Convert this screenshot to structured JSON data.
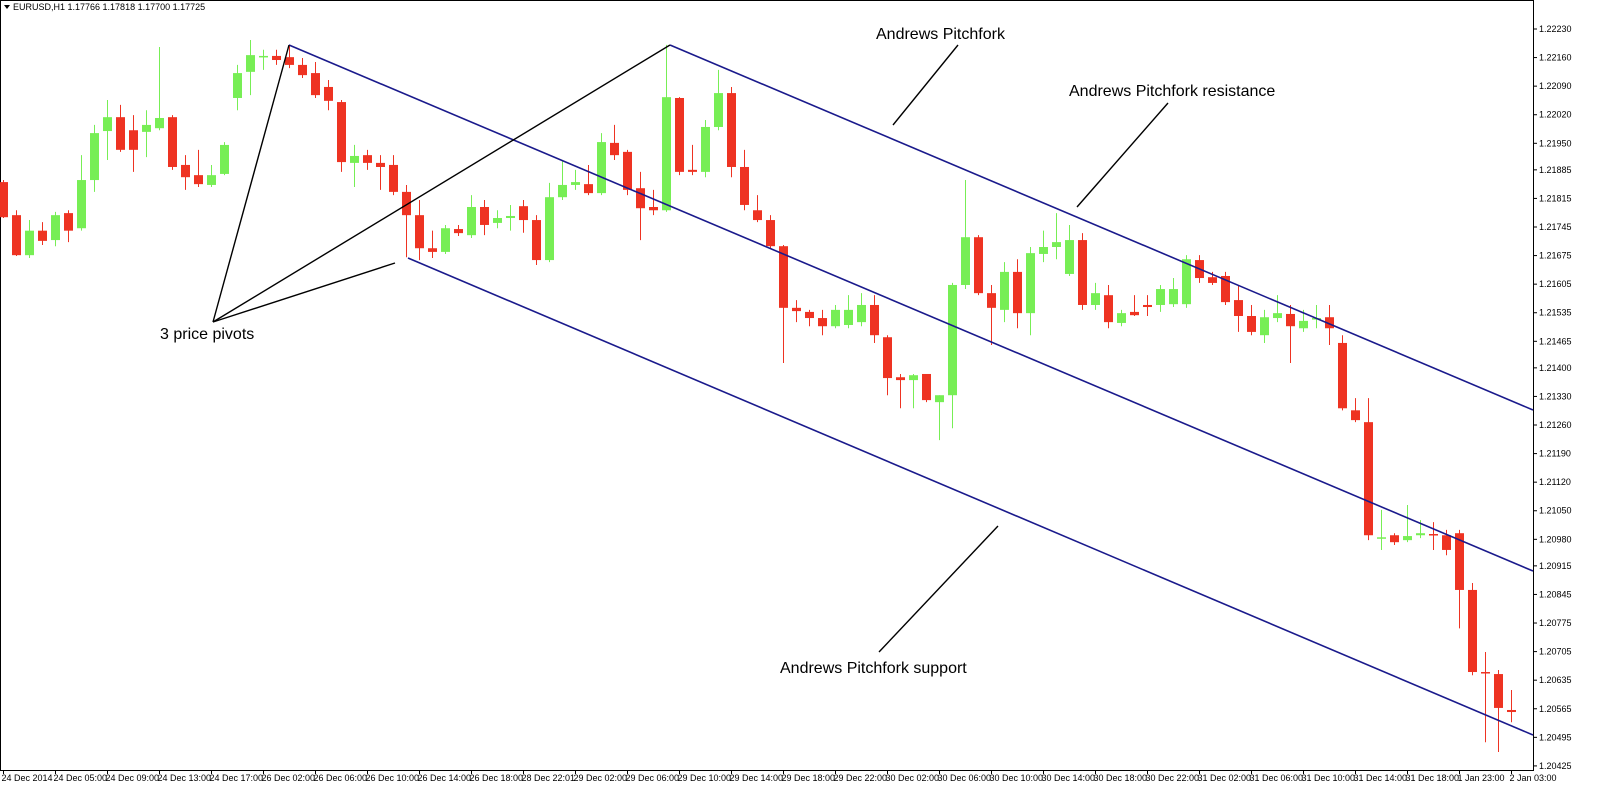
{
  "chart_data": {
    "type": "candlestick",
    "title": "EURUSD,H1  1.17766 1.17818 1.17700 1.17725",
    "up_color": "#77ee55",
    "down_color": "#ee3322",
    "grid": false,
    "ylim": [
      1.20415,
      1.22301
    ],
    "yticks": [
      {
        "value": 1.2223,
        "label": "1.22230"
      },
      {
        "value": 1.2216,
        "label": "1.22160"
      },
      {
        "value": 1.2209,
        "label": "1.22090"
      },
      {
        "value": 1.2202,
        "label": "1.22020"
      },
      {
        "value": 1.2195,
        "label": "1.21950"
      },
      1.21885,
      1.21815,
      1.21745,
      1.21675,
      1.21605,
      1.21535,
      1.21465,
      {
        "value": 1.214,
        "label": "1.21400"
      },
      {
        "value": 1.2133,
        "label": "1.21330"
      },
      {
        "value": 1.2126,
        "label": "1.21260"
      },
      {
        "value": 1.2119,
        "label": "1.21190"
      },
      {
        "value": 1.2112,
        "label": "1.21120"
      },
      {
        "value": 1.2105,
        "label": "1.21050"
      },
      {
        "value": 1.2098,
        "label": "1.20980"
      },
      1.20915,
      1.20845,
      1.20775,
      1.20705,
      1.20635,
      1.20565,
      1.20495,
      1.20425
    ],
    "annotations": [
      "Andrews Pitchfork",
      "Andrews Pitchfork resistance",
      "Andrews Pitchfork support",
      "3 price pivots"
    ],
    "categories": [
      "24 Dec 2014",
      null,
      null,
      null,
      "24 Dec 05:00",
      null,
      null,
      null,
      "24 Dec 09:00",
      null,
      null,
      null,
      "24 Dec 13:00",
      null,
      null,
      null,
      "24 Dec 17:00",
      null,
      null,
      null,
      "26 Dec 02:00",
      null,
      null,
      null,
      "26 Dec 06:00",
      null,
      null,
      null,
      "26 Dec 10:00",
      null,
      null,
      null,
      "26 Dec 14:00",
      null,
      null,
      null,
      "26 Dec 18:00",
      null,
      null,
      null,
      "28 Dec 22:01",
      null,
      null,
      null,
      "29 Dec 02:00",
      null,
      null,
      null,
      "29 Dec 06:00",
      null,
      null,
      null,
      "29 Dec 10:00",
      null,
      null,
      null,
      "29 Dec 14:00",
      null,
      null,
      null,
      "29 Dec 18:00",
      null,
      null,
      null,
      "29 Dec 22:00",
      null,
      null,
      null,
      "30 Dec 02:00",
      null,
      null,
      null,
      "30 Dec 06:00",
      null,
      null,
      null,
      "30 Dec 10:00",
      null,
      null,
      null,
      "30 Dec 14:00",
      null,
      null,
      null,
      "30 Dec 18:00",
      null,
      null,
      null,
      "30 Dec 22:00",
      null,
      null,
      null,
      "31 Dec 02:00",
      null,
      null,
      null,
      "31 Dec 06:00",
      null,
      null,
      null,
      "31 Dec 10:00",
      null,
      null,
      null,
      "31 Dec 14:00",
      null,
      null,
      null,
      "31 Dec 18:00",
      null,
      null,
      null,
      "1 Jan 23:00",
      null,
      null,
      null,
      "2 Jan 03:00"
    ],
    "open": [
      1.21855,
      1.21774,
      1.21676,
      1.21736,
      1.21713,
      1.21779,
      1.21742,
      1.2186,
      1.2198,
      1.22014,
      1.21982,
      1.21978,
      1.21987,
      1.22014,
      1.21897,
      1.21872,
      1.21848,
      1.21875,
      1.22061,
      1.22125,
      1.22161,
      1.22164,
      1.22161,
      1.22142,
      1.22122,
      1.22088,
      1.22051,
      1.21902,
      1.21921,
      1.21902,
      1.21897,
      1.21831,
      1.21774,
      1.21693,
      1.21684,
      1.2174,
      1.21725,
      1.21794,
      1.21755,
      1.21767,
      1.21796,
      1.21762,
      1.21664,
      1.21818,
      1.21848,
      1.2185,
      1.21828,
      1.21951,
      1.21929,
      1.2184,
      1.21794,
      1.21786,
      1.22061,
      1.21885,
      1.2188,
      1.2199,
      1.22073,
      1.21892,
      1.21786,
      1.21762,
      1.21698,
      1.21547,
      1.21537,
      1.21522,
      1.21502,
      1.21505,
      1.21512,
      1.21554,
      1.21475,
      1.21377,
      1.2137,
      1.21385,
      1.21316,
      1.21333,
      1.21603,
      1.2172,
      1.21583,
      1.21542,
      1.21635,
      1.21534,
      1.21679,
      1.21696,
      1.2163,
      1.21713,
      1.21554,
      1.21578,
      1.2151,
      1.21537,
      1.21554,
      1.21554,
      1.21556,
      1.21556,
      1.21664,
      1.21622,
      1.21625,
      1.21566,
      1.21527,
      1.2148,
      1.21522,
      1.21532,
      1.21497,
      1.21519,
      1.21524,
      1.21461,
      1.21296,
      1.21267,
      1.20983,
      1.2099,
      1.20978,
      1.2099,
      1.20993,
      1.2099,
      1.20995,
      1.20856,
      1.20655,
      1.2065,
      1.20562
    ],
    "high": [
      1.2186,
      1.21786,
      1.21762,
      1.21757,
      1.21782,
      1.21786,
      1.21921,
      1.21995,
      1.22056,
      1.22044,
      1.22019,
      1.22031,
      1.22186,
      1.22019,
      1.21921,
      1.21934,
      1.21897,
      1.21953,
      1.22142,
      1.22203,
      1.22179,
      1.22179,
      1.22191,
      1.22159,
      1.22149,
      1.22105,
      1.22056,
      1.21946,
      1.21934,
      1.21921,
      1.21921,
      1.21848,
      1.21811,
      1.21736,
      1.2175,
      1.2175,
      1.21823,
      1.21811,
      1.21786,
      1.21799,
      1.21811,
      1.21774,
      1.21853,
      1.21909,
      1.21885,
      1.21897,
      1.21975,
      1.21995,
      1.21934,
      1.2188,
      1.21836,
      1.22191,
      1.22063,
      1.21946,
      1.22007,
      1.2213,
      1.22088,
      1.21934,
      1.21823,
      1.21774,
      1.21701,
      1.21566,
      1.21542,
      1.21542,
      1.21554,
      1.21578,
      1.21583,
      1.21578,
      1.2148,
      1.21385,
      1.21385,
      1.21385,
      1.21333,
      1.21608,
      1.2186,
      1.21725,
      1.21603,
      1.21659,
      1.21666,
      1.21696,
      1.21736,
      1.21779,
      1.2175,
      1.2173,
      1.21608,
      1.21603,
      1.21542,
      1.21578,
      1.21578,
      1.21603,
      1.2162,
      1.21676,
      1.21676,
      1.21635,
      1.21635,
      1.21603,
      1.21554,
      1.21542,
      1.21578,
      1.21554,
      1.21542,
      1.21554,
      1.21554,
      1.2148,
      1.21326,
      1.21326,
      1.21052,
      1.20995,
      1.21064,
      1.21027,
      1.21022,
      1.21003,
      1.21003,
      1.20873,
      1.20704,
      1.2066,
      1.20611
    ],
    "low": [
      1.21767,
      1.21674,
      1.21669,
      1.21701,
      1.21698,
      1.21708,
      1.21736,
      1.21831,
      1.21909,
      1.21929,
      1.2188,
      1.21916,
      1.21982,
      1.21885,
      1.21836,
      1.21843,
      1.21843,
      1.21872,
      1.22031,
      1.22068,
      1.2213,
      1.22142,
      1.22134,
      1.2211,
      1.22061,
      1.22031,
      1.2188,
      1.21843,
      1.21885,
      1.21836,
      1.21823,
      1.21671,
      1.21664,
      1.21669,
      1.21679,
      1.21723,
      1.21718,
      1.21725,
      1.21742,
      1.21736,
      1.21731,
      1.21652,
      1.21659,
      1.21811,
      1.21836,
      1.21823,
      1.21823,
      1.21909,
      1.21823,
      1.21713,
      1.21774,
      1.21782,
      1.21872,
      1.21872,
      1.21867,
      1.21982,
      1.21867,
      1.21786,
      1.21757,
      1.21693,
      1.21412,
      1.21512,
      1.21502,
      1.2148,
      1.21497,
      1.21497,
      1.21502,
      1.21461,
      1.21333,
      1.21301,
      1.21301,
      1.21316,
      1.21223,
      1.21252,
      1.21593,
      1.21578,
      1.21456,
      1.21512,
      1.21497,
      1.2148,
      1.21659,
      1.21666,
      1.21625,
      1.21542,
      1.21542,
      1.21497,
      1.21502,
      1.21527,
      1.21527,
      1.21537,
      1.21549,
      1.21547,
      1.21608,
      1.21603,
      1.21554,
      1.21488,
      1.2148,
      1.21461,
      1.21512,
      1.21412,
      1.21488,
      1.21497,
      1.21456,
      1.21296,
      1.21267,
      1.20978,
      1.20954,
      1.20966,
      1.20973,
      1.20983,
      1.20954,
      1.20941,
      1.20762,
      1.20647,
      1.20483,
      1.20459,
      1.20532
    ],
    "close": [
      1.21769,
      1.21676,
      1.21736,
      1.21711,
      1.21774,
      1.21736,
      1.2186,
      1.21975,
      1.22014,
      1.21934,
      1.21934,
      1.21995,
      1.22012,
      1.21892,
      1.21867,
      1.2185,
      1.21872,
      1.21946,
      1.22122,
      1.22166,
      1.22164,
      1.22154,
      1.22142,
      1.22117,
      1.22068,
      1.22054,
      1.21904,
      1.21919,
      1.21902,
      1.21892,
      1.21831,
      1.21774,
      1.21693,
      1.21684,
      1.21742,
      1.2173,
      1.21794,
      1.2175,
      1.21767,
      1.21772,
      1.21762,
      1.21664,
      1.21818,
      1.21848,
      1.21855,
      1.21828,
      1.21953,
      1.21921,
      1.21836,
      1.21791,
      1.21786,
      1.22063,
      1.2188,
      1.2188,
      1.2199,
      1.22073,
      1.21892,
      1.21799,
      1.21762,
      1.21698,
      1.21547,
      1.21539,
      1.21522,
      1.21502,
      1.21542,
      1.21542,
      1.21554,
      1.2148,
      1.21375,
      1.2137,
      1.21382,
      1.21321,
      1.21333,
      1.21603,
      1.2172,
      1.21583,
      1.21547,
      1.21635,
      1.21534,
      1.21681,
      1.21696,
      1.21708,
      1.21713,
      1.21554,
      1.21583,
      1.21512,
      1.21534,
      1.21529,
      1.21549,
      1.21593,
      1.21593,
      1.21666,
      1.2162,
      1.21608,
      1.21561,
      1.21527,
      1.21488,
      1.21524,
      1.21534,
      1.21502,
      1.21515,
      1.21522,
      1.21497,
      1.21301,
      1.21272,
      1.2099,
      1.20985,
      1.20973,
      1.20988,
      1.20995,
      1.2099,
      1.20954,
      1.20856,
      1.20655,
      1.20652,
      1.20567,
      1.20557
    ]
  }
}
